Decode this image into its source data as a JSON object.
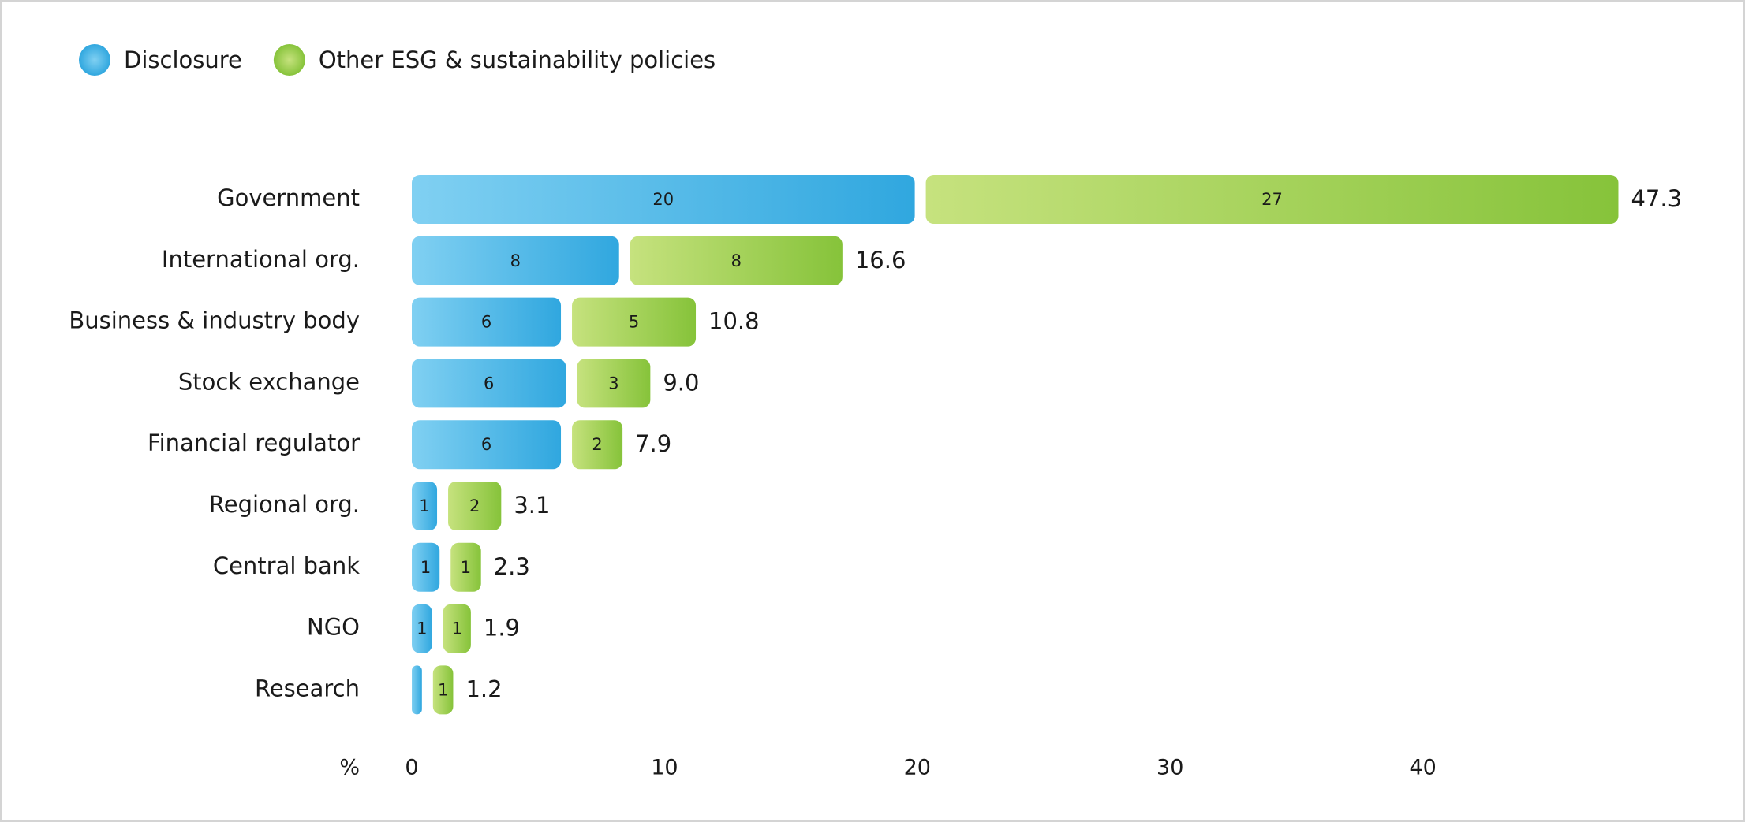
{
  "chart_data": {
    "type": "bar",
    "orientation": "horizontal",
    "stacked": true,
    "categories": [
      "Government",
      "International org.",
      "Business & industry body",
      "Stock exchange",
      "Financial regulator",
      "Regional org.",
      "Central bank",
      "NGO",
      "Research"
    ],
    "series": [
      {
        "name": "Disclosure",
        "color": "#3aaee2",
        "values": [
          19.9,
          8.2,
          5.9,
          6.1,
          5.9,
          1.0,
          1.1,
          0.8,
          0.4
        ],
        "value_labels": [
          "20",
          "8",
          "6",
          "6",
          "6",
          "1",
          "1",
          "1",
          null
        ]
      },
      {
        "name": "Other ESG & sustainability policies",
        "color": "#8fc741",
        "values": [
          27.4,
          8.4,
          4.9,
          2.9,
          2.0,
          2.1,
          1.2,
          1.1,
          0.8
        ],
        "value_labels": [
          "27",
          "8",
          "5",
          "3",
          "2",
          "2",
          "1",
          "1",
          "1"
        ]
      }
    ],
    "totals": [
      47.3,
      16.6,
      10.8,
      9.0,
      7.9,
      3.1,
      2.3,
      1.9,
      1.2
    ],
    "total_labels": [
      "47.3",
      "16.6",
      "10.8",
      "9.0",
      "7.9",
      "3.1",
      "2.3",
      "1.9",
      "1.2"
    ],
    "x_label": "%",
    "xlim": [
      0,
      50
    ],
    "xticks": [
      0,
      10,
      20,
      30,
      40
    ],
    "legend": "top-left",
    "grid": false
  }
}
